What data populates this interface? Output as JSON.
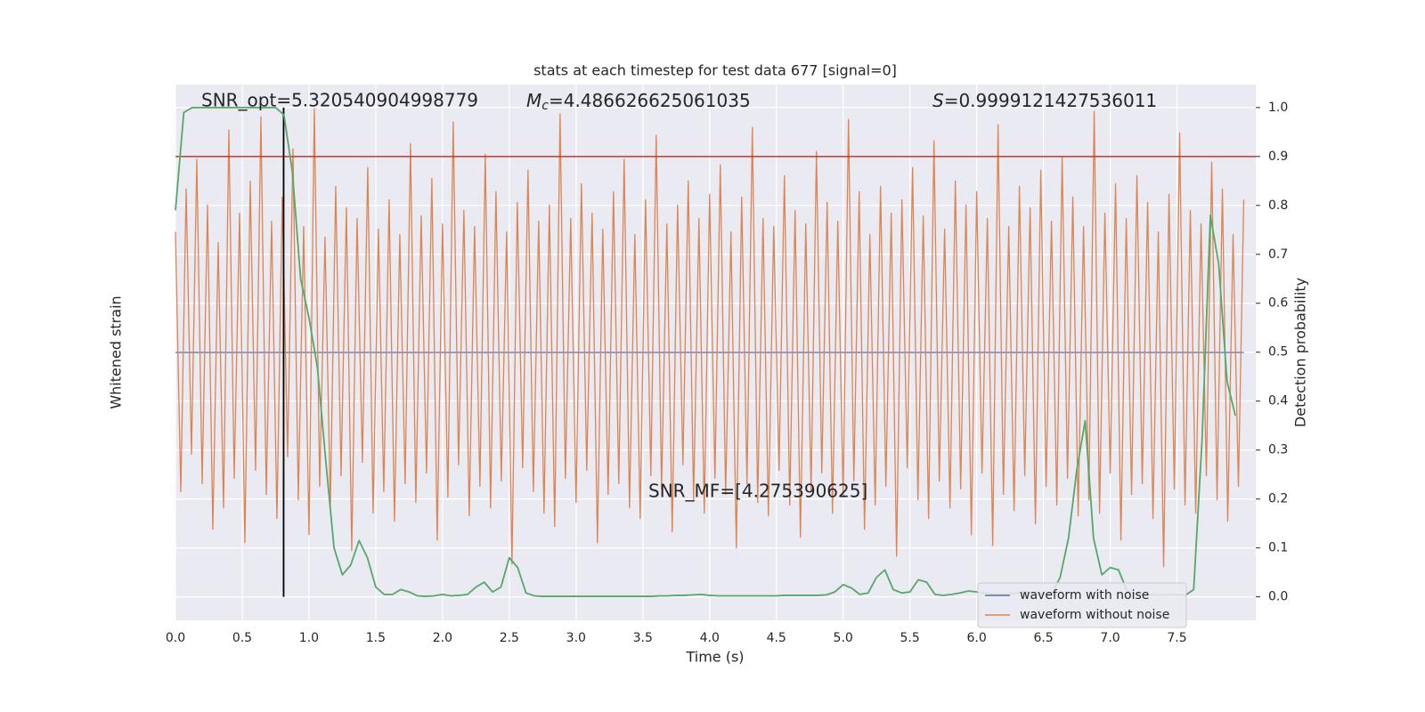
{
  "chart_data": {
    "type": "line",
    "title": "stats at each timestep for test data 677 [signal=0]",
    "x_label": "Time (s)",
    "y_label": "Whitened strain",
    "y2_label": "Detection probability",
    "snr_opt_text": "SNR_opt=5.320540904998779",
    "mc_symbol": "M",
    "mc_subscript": "c",
    "mc_text": "=4.486626625061035",
    "s_symbol": "S",
    "s_text": "=0.9999121427536011",
    "snr_mf_text": "SNR_MF=[4.275390625]",
    "xlim": [
      0,
      8.09
    ],
    "ylim": [
      -1,
      1
    ],
    "y2lim": [
      -0.048,
      1.047
    ],
    "xticks": [
      {
        "value": 0,
        "label": "0.0"
      },
      {
        "value": 0.5,
        "label": "0.5"
      },
      {
        "value": 1,
        "label": "1.0"
      },
      {
        "value": 1.5,
        "label": "1.5"
      },
      {
        "value": 2,
        "label": "2.0"
      },
      {
        "value": 2.5,
        "label": "2.5"
      },
      {
        "value": 3,
        "label": "3.0"
      },
      {
        "value": 3.5,
        "label": "3.5"
      },
      {
        "value": 4,
        "label": "4.0"
      },
      {
        "value": 4.5,
        "label": "4.5"
      },
      {
        "value": 5,
        "label": "5.0"
      },
      {
        "value": 5.5,
        "label": "5.5"
      },
      {
        "value": 6,
        "label": "6.0"
      },
      {
        "value": 6.5,
        "label": "6.5"
      },
      {
        "value": 7,
        "label": "7.0"
      },
      {
        "value": 7.5,
        "label": "7.5"
      }
    ],
    "y2ticks": [
      {
        "value": 0,
        "label": "0.0"
      },
      {
        "value": 0.1,
        "label": "0.1"
      },
      {
        "value": 0.2,
        "label": "0.2"
      },
      {
        "value": 0.3,
        "label": "0.3"
      },
      {
        "value": 0.4,
        "label": "0.4"
      },
      {
        "value": 0.5,
        "label": "0.5"
      },
      {
        "value": 0.6,
        "label": "0.6"
      },
      {
        "value": 0.7,
        "label": "0.7"
      },
      {
        "value": 0.8,
        "label": "0.8"
      },
      {
        "value": 0.9,
        "label": "0.9"
      },
      {
        "value": 1,
        "label": "1.0"
      }
    ],
    "grid": true,
    "legend": "lower right",
    "threshold": 0.9,
    "threshold_color": "#c0392b",
    "marker_x": 0.81,
    "marker_color": "#000000",
    "series": [
      {
        "name": "waveform with noise",
        "color": "#4c72b0",
        "x": [
          0,
          0.04,
          0.08,
          0.12,
          0.16,
          0.2,
          0.24,
          0.28,
          0.32,
          0.36,
          0.4,
          0.44,
          0.48,
          0.52,
          0.56,
          0.6,
          0.64,
          0.68,
          0.72,
          0.76,
          0.8,
          0.84,
          0.88,
          0.92,
          0.96,
          1,
          1.04,
          1.08,
          1.12,
          1.16,
          1.2,
          1.24,
          1.28,
          1.32,
          1.36,
          1.4,
          1.44,
          1.48,
          1.52,
          1.56,
          1.6,
          1.64,
          1.68,
          1.72,
          1.76,
          1.8,
          1.84,
          1.88,
          1.92,
          1.96,
          2,
          2.04,
          2.08,
          2.12,
          2.16,
          2.2,
          2.24,
          2.28,
          2.32,
          2.36,
          2.4,
          2.44,
          2.48,
          2.52,
          2.56,
          2.6,
          2.64,
          2.68,
          2.72,
          2.76,
          2.8,
          2.84,
          2.88,
          2.92,
          2.96,
          3,
          3.04,
          3.08,
          3.12,
          3.16,
          3.2,
          3.24,
          3.28,
          3.32,
          3.36,
          3.4,
          3.44,
          3.48,
          3.52,
          3.56,
          3.6,
          3.64,
          3.68,
          3.72,
          3.76,
          3.8,
          3.84,
          3.88,
          3.92,
          3.96,
          4,
          4.04,
          4.08,
          4.12,
          4.16,
          4.2,
          4.24,
          4.28,
          4.32,
          4.36,
          4.4,
          4.44,
          4.48,
          4.52,
          4.56,
          4.6,
          4.64,
          4.68,
          4.72,
          4.76,
          4.8,
          4.84,
          4.88,
          4.92,
          4.96,
          5,
          5.04,
          5.08,
          5.12,
          5.16,
          5.2,
          5.24,
          5.28,
          5.32,
          5.36,
          5.4,
          5.44,
          5.48,
          5.52,
          5.56,
          5.6,
          5.64,
          5.68,
          5.72,
          5.76,
          5.8,
          5.84,
          5.88,
          5.92,
          5.96,
          6,
          6.04,
          6.08,
          6.12,
          6.16,
          6.2,
          6.24,
          6.28,
          6.32,
          6.36,
          6.4,
          6.44,
          6.48,
          6.52,
          6.56,
          6.6,
          6.64,
          6.68,
          6.72,
          6.76,
          6.8,
          6.84,
          6.88,
          6.92,
          6.96,
          7,
          7.04,
          7.08,
          7.12,
          7.16,
          7.2,
          7.24,
          7.28,
          7.32,
          7.36,
          7.4,
          7.44,
          7.48,
          7.52,
          7.56,
          7.6,
          7.64,
          7.68,
          7.72,
          7.76,
          7.8,
          7.84,
          7.88,
          7.92,
          7.96,
          8
        ],
        "values": [
          0,
          0,
          0,
          0,
          0,
          0,
          0,
          0,
          0,
          0,
          0,
          0,
          0,
          0,
          0,
          0,
          0,
          0,
          0,
          0,
          0,
          0,
          0,
          0,
          0,
          0,
          0,
          0,
          0,
          0,
          0,
          0,
          0,
          0,
          0,
          0,
          0,
          0,
          0,
          0,
          0,
          0,
          0,
          0,
          0,
          0,
          0,
          0,
          0,
          0,
          0,
          0,
          0,
          0,
          0,
          0,
          0,
          0,
          0,
          0,
          0,
          0,
          0,
          0,
          0,
          0,
          0,
          0,
          0,
          0,
          0,
          0,
          0,
          0,
          0,
          0,
          0,
          0,
          0,
          0,
          0,
          0,
          0,
          0,
          0,
          0,
          0,
          0,
          0,
          0,
          0,
          0,
          0,
          0,
          0,
          0,
          0,
          0,
          0,
          0,
          0,
          0,
          0,
          0,
          0,
          0,
          0,
          0,
          0,
          0,
          0,
          0,
          0,
          0,
          0,
          0,
          0,
          0,
          0,
          0,
          0,
          0,
          0,
          0,
          0,
          0,
          0,
          0,
          0,
          0,
          0,
          0,
          0,
          0,
          0,
          0,
          0,
          0,
          0,
          0,
          0,
          0,
          0,
          0,
          0,
          0,
          0,
          0,
          0,
          0,
          0,
          0,
          0,
          0,
          0,
          0,
          0,
          0,
          0,
          0,
          0,
          0,
          0,
          0,
          0,
          0,
          0,
          0,
          0,
          0,
          0,
          0,
          0,
          0,
          0,
          0,
          0,
          0,
          0,
          0,
          0,
          0,
          0,
          0,
          0,
          0,
          0,
          0,
          0,
          0,
          0,
          0,
          0,
          0,
          0,
          0,
          0,
          0,
          0,
          0,
          0
        ]
      },
      {
        "name": "waveform without noise",
        "color": "#dd8452",
        "x": [
          0,
          0.04,
          0.08,
          0.12,
          0.16,
          0.2,
          0.24,
          0.28,
          0.32,
          0.36,
          0.4,
          0.44,
          0.48,
          0.52,
          0.56,
          0.6,
          0.64,
          0.68,
          0.72,
          0.76,
          0.8,
          0.84,
          0.88,
          0.92,
          0.96,
          1,
          1.04,
          1.08,
          1.12,
          1.16,
          1.2,
          1.24,
          1.28,
          1.32,
          1.36,
          1.4,
          1.44,
          1.48,
          1.52,
          1.56,
          1.6,
          1.64,
          1.68,
          1.72,
          1.76,
          1.8,
          1.84,
          1.88,
          1.92,
          1.96,
          2,
          2.04,
          2.08,
          2.12,
          2.16,
          2.2,
          2.24,
          2.28,
          2.32,
          2.36,
          2.4,
          2.44,
          2.48,
          2.52,
          2.56,
          2.6,
          2.64,
          2.68,
          2.72,
          2.76,
          2.8,
          2.84,
          2.88,
          2.92,
          2.96,
          3,
          3.04,
          3.08,
          3.12,
          3.16,
          3.2,
          3.24,
          3.28,
          3.32,
          3.36,
          3.4,
          3.44,
          3.48,
          3.52,
          3.56,
          3.6,
          3.64,
          3.68,
          3.72,
          3.76,
          3.8,
          3.84,
          3.88,
          3.92,
          3.96,
          4,
          4.04,
          4.08,
          4.12,
          4.16,
          4.2,
          4.24,
          4.28,
          4.32,
          4.36,
          4.4,
          4.44,
          4.48,
          4.52,
          4.56,
          4.6,
          4.64,
          4.68,
          4.72,
          4.76,
          4.8,
          4.84,
          4.88,
          4.92,
          4.96,
          5,
          5.04,
          5.08,
          5.12,
          5.16,
          5.2,
          5.24,
          5.28,
          5.32,
          5.36,
          5.4,
          5.44,
          5.48,
          5.52,
          5.56,
          5.6,
          5.64,
          5.68,
          5.72,
          5.76,
          5.8,
          5.84,
          5.88,
          5.92,
          5.96,
          6,
          6.04,
          6.08,
          6.12,
          6.16,
          6.2,
          6.24,
          6.28,
          6.32,
          6.36,
          6.4,
          6.44,
          6.48,
          6.52,
          6.56,
          6.6,
          6.64,
          6.68,
          6.72,
          6.76,
          6.8,
          6.84,
          6.88,
          6.92,
          6.96,
          7,
          7.04,
          7.08,
          7.12,
          7.16,
          7.2,
          7.24,
          7.28,
          7.32,
          7.36,
          7.4,
          7.44,
          7.48,
          7.52,
          7.56,
          7.6,
          7.64,
          7.68,
          7.72,
          7.76,
          7.8,
          7.84,
          7.88,
          7.92,
          7.96,
          8
        ],
        "values": [
          0.45,
          -0.52,
          0.61,
          -0.38,
          0.72,
          -0.49,
          0.55,
          -0.66,
          0.41,
          -0.58,
          0.83,
          -0.47,
          0.52,
          -0.71,
          0.64,
          -0.44,
          0.88,
          -0.53,
          0.49,
          -0.62,
          0.58,
          -0.39,
          0.76,
          -0.55,
          0.47,
          -0.68,
          0.91,
          -0.5,
          0.43,
          -0.57,
          0.62,
          -0.46,
          0.54,
          -0.74,
          0.5,
          -0.41,
          0.69,
          -0.6,
          0.46,
          -0.52,
          0.57,
          -0.63,
          0.44,
          -0.49,
          0.78,
          -0.56,
          0.51,
          -0.45,
          0.65,
          -0.7,
          0.48,
          -0.54,
          0.86,
          -0.42,
          0.53,
          -0.61,
          0.47,
          -0.5,
          0.74,
          -0.58,
          0.6,
          -0.48,
          0.45,
          -0.79,
          0.56,
          -0.43,
          0.68,
          -0.52,
          0.49,
          -0.6,
          0.55,
          -0.65,
          0.89,
          -0.47,
          0.5,
          -0.56,
          0.63,
          -0.44,
          0.52,
          -0.71,
          0.46,
          -0.53,
          0.6,
          -0.49,
          0.72,
          -0.58,
          0.44,
          -0.62,
          0.57,
          -0.46,
          0.81,
          -0.51,
          0.48,
          -0.67,
          0.55,
          -0.42,
          0.64,
          -0.55,
          0.5,
          -0.6,
          0.59,
          -0.47,
          0.7,
          -0.53,
          0.45,
          -0.73,
          0.58,
          -0.49,
          0.84,
          -0.56,
          0.5,
          -0.61,
          0.47,
          -0.44,
          0.66,
          -0.57,
          0.53,
          -0.69,
          0.48,
          -0.52,
          0.75,
          -0.45,
          0.56,
          -0.6,
          0.49,
          -0.54,
          0.87,
          -0.48,
          0.6,
          -0.66,
          0.44,
          -0.57,
          0.62,
          -0.5,
          0.52,
          -0.76,
          0.57,
          -0.43,
          0.69,
          -0.55,
          0.51,
          -0.62,
          0.79,
          -0.48,
          0.46,
          -0.58,
          0.64,
          -0.51,
          0.55,
          -0.68,
          0.6,
          -0.45,
          0.5,
          -0.72,
          0.85,
          -0.53,
          0.47,
          -0.59,
          0.62,
          -0.46,
          0.54,
          -0.64,
          0.68,
          -0.5,
          0.49,
          -0.57,
          0.73,
          -0.47,
          0.58,
          -0.61,
          0.47,
          -0.55,
          0.9,
          -0.6,
          0.52,
          -0.45,
          0.63,
          -0.7,
          0.5,
          -0.53,
          0.66,
          -0.49,
          0.56,
          -0.62,
          0.45,
          -0.8,
          0.59,
          -0.51,
          0.82,
          -0.57,
          0.53,
          -0.6,
          0.48,
          -0.46,
          0.71,
          -0.55,
          0.61,
          -0.63,
          0.44,
          -0.5,
          0.57
        ]
      },
      {
        "color": "#55a868",
        "axis": "y2",
        "x": [
          0,
          0.0625,
          0.125,
          0.1875,
          0.25,
          0.3125,
          0.375,
          0.4375,
          0.5,
          0.5625,
          0.625,
          0.6875,
          0.75,
          0.8125,
          0.875,
          0.9375,
          1,
          1.0625,
          1.125,
          1.1875,
          1.25,
          1.3125,
          1.375,
          1.4375,
          1.5,
          1.5625,
          1.625,
          1.6875,
          1.75,
          1.8125,
          1.875,
          1.9375,
          2,
          2.0625,
          2.125,
          2.1875,
          2.25,
          2.3125,
          2.375,
          2.4375,
          2.5,
          2.5625,
          2.625,
          2.6875,
          2.75,
          2.8125,
          2.875,
          2.9375,
          3,
          3.0625,
          3.125,
          3.1875,
          3.25,
          3.3125,
          3.375,
          3.4375,
          3.5,
          3.5625,
          3.625,
          3.6875,
          3.75,
          3.8125,
          3.875,
          3.9375,
          4,
          4.0625,
          4.125,
          4.1875,
          4.25,
          4.3125,
          4.375,
          4.4375,
          4.5,
          4.5625,
          4.625,
          4.6875,
          4.75,
          4.8125,
          4.875,
          4.9375,
          5,
          5.0625,
          5.125,
          5.1875,
          5.25,
          5.3125,
          5.375,
          5.4375,
          5.5,
          5.5625,
          5.625,
          5.6875,
          5.75,
          5.8125,
          5.875,
          5.9375,
          6,
          6.0625,
          6.125,
          6.1875,
          6.25,
          6.3125,
          6.375,
          6.4375,
          6.5,
          6.5625,
          6.625,
          6.6875,
          6.75,
          6.8125,
          6.875,
          6.9375,
          7,
          7.0625,
          7.125,
          7.1875,
          7.25,
          7.3125,
          7.375,
          7.4375,
          7.5,
          7.5625,
          7.625,
          7.6875,
          7.75,
          7.8125,
          7.875,
          7.9375
        ],
        "values": [
          0.79,
          0.99,
          1,
          1,
          1,
          1,
          1,
          1,
          1,
          1,
          1,
          1,
          1,
          0.985,
          0.87,
          0.65,
          0.57,
          0.47,
          0.28,
          0.1,
          0.045,
          0.065,
          0.115,
          0.08,
          0.02,
          0.005,
          0.005,
          0.015,
          0.01,
          0.002,
          0.001,
          0.002,
          0.005,
          0.002,
          0.003,
          0.005,
          0.02,
          0.03,
          0.01,
          0.02,
          0.08,
          0.06,
          0.008,
          0.002,
          0.001,
          0.001,
          0.001,
          0.001,
          0.001,
          0.001,
          0.001,
          0.001,
          0.001,
          0.001,
          0.001,
          0.001,
          0.001,
          0.001,
          0.002,
          0.002,
          0.003,
          0.003,
          0.004,
          0.005,
          0.003,
          0.002,
          0.002,
          0.002,
          0.002,
          0.002,
          0.002,
          0.002,
          0.002,
          0.003,
          0.003,
          0.003,
          0.003,
          0.003,
          0.004,
          0.01,
          0.025,
          0.018,
          0.005,
          0.008,
          0.04,
          0.055,
          0.015,
          0.008,
          0.01,
          0.035,
          0.03,
          0.005,
          0.003,
          0.005,
          0.008,
          0.012,
          0.01,
          0.008,
          0.006,
          0.005,
          0.006,
          0.008,
          0.01,
          0.008,
          0.006,
          0.006,
          0.04,
          0.12,
          0.26,
          0.36,
          0.12,
          0.045,
          0.06,
          0.055,
          0.012,
          0.006,
          0.005,
          0.004,
          0.004,
          0.004,
          0.005,
          0.003,
          0.015,
          0.32,
          0.78,
          0.68,
          0.44,
          0.37
        ]
      }
    ]
  }
}
